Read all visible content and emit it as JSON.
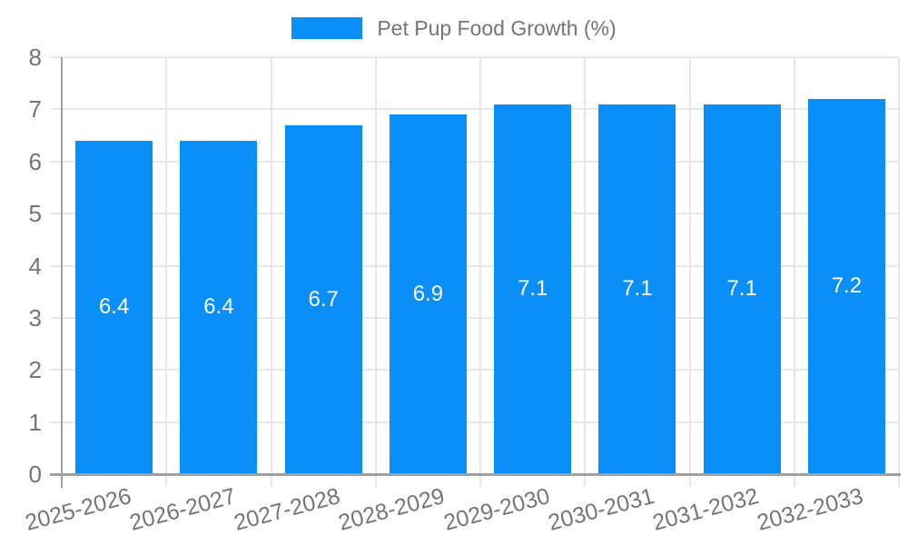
{
  "chart_data": {
    "type": "bar",
    "title": "Pet Pup Food Growth (%)",
    "categories": [
      "2025-2026",
      "2026-2027",
      "2027-2028",
      "2028-2029",
      "2029-2030",
      "2030-2031",
      "2031-2032",
      "2032-2033"
    ],
    "values": [
      6.4,
      6.4,
      6.7,
      6.9,
      7.1,
      7.1,
      7.1,
      7.2
    ],
    "value_labels": [
      "6.4",
      "6.4",
      "6.7",
      "6.9",
      "7.1",
      "7.1",
      "7.1",
      "7.2"
    ],
    "xlabel": "",
    "ylabel": "",
    "ylim": [
      0,
      8
    ],
    "yticks": [
      0,
      1,
      2,
      3,
      4,
      5,
      6,
      7,
      8
    ],
    "grid": true,
    "legend": {
      "label": "Pet Pup Food Growth (%)",
      "position": "top-center"
    }
  },
  "colors": {
    "bar": "#0a8ef7",
    "bar_value_text": "#ffffff",
    "grid": "#e7e7e7",
    "axis": "#9f9f9f",
    "tick_text": "#757575",
    "legend_text": "#757575",
    "background": "#ffffff"
  }
}
